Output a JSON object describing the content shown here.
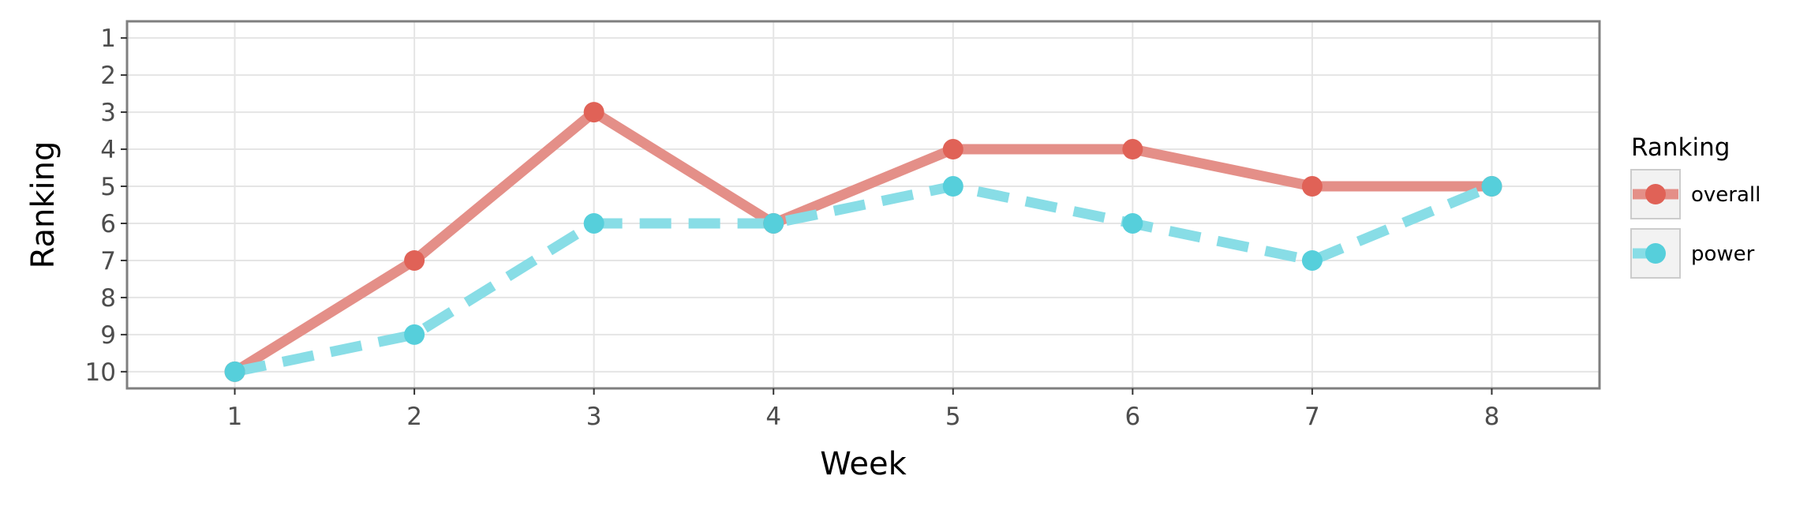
{
  "chart_data": {
    "type": "line",
    "xlabel": "Week",
    "ylabel": "Ranking",
    "x": [
      1,
      2,
      3,
      4,
      5,
      6,
      7,
      8
    ],
    "x_ticks": [
      "1",
      "2",
      "3",
      "4",
      "5",
      "6",
      "7",
      "8"
    ],
    "y_ticks": [
      "1",
      "2",
      "3",
      "4",
      "5",
      "6",
      "7",
      "8",
      "9",
      "10"
    ],
    "y_reversed": true,
    "xlim": [
      0.4,
      8.6
    ],
    "ylim": [
      0.55,
      10.45
    ],
    "grid": true,
    "legend": {
      "title": "Ranking",
      "position": "right"
    },
    "series": [
      {
        "name": "overall",
        "values": [
          10,
          7,
          3,
          6,
          4,
          4,
          5,
          5
        ],
        "color": "#e06257",
        "line_color": "#e48f88",
        "dash": "solid"
      },
      {
        "name": "power",
        "values": [
          10,
          9,
          6,
          6,
          5,
          6,
          7,
          5
        ],
        "color": "#56cfdb",
        "line_color": "#88dde6",
        "dash": "dashed"
      }
    ]
  }
}
